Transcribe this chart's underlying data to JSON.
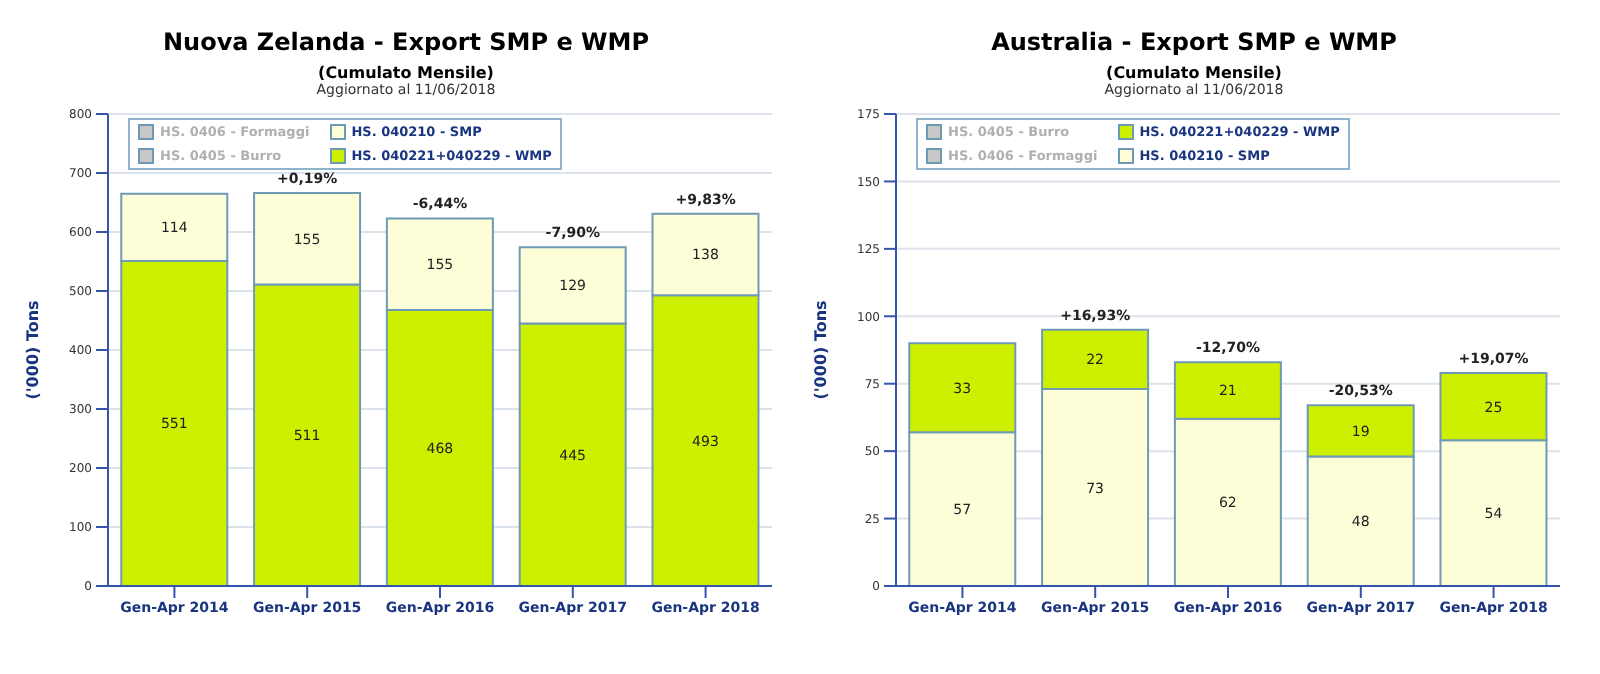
{
  "chart_data": [
    {
      "type": "bar",
      "title": "Nuova Zelanda - Export SMP e WMP",
      "subtitle": "(Cumulato Mensile)",
      "ylabel": "('000) Tons",
      "categories": [
        "Gen-Apr 2014",
        "Gen-Apr 2015",
        "Gen-Apr 2016",
        "Gen-Apr 2017",
        "Gen-Apr 2018"
      ],
      "stacked": true,
      "ylim": [
        0,
        800
      ],
      "yticks": [
        0,
        100,
        200,
        300,
        400,
        500,
        600,
        700,
        800
      ],
      "grid": "y",
      "legend": "top left",
      "data_labels": true,
      "series": [
        {
          "name": "HS. 040221+040229 - WMP",
          "color": "#ccf000",
          "values": [
            551,
            511,
            468,
            445,
            493
          ]
        },
        {
          "name": "HS. 0405 - Burro",
          "color": "#c8c8c8",
          "values": [
            null,
            null,
            null,
            null,
            null
          ]
        },
        {
          "name": "HS. 040210 - SMP",
          "color": "#fdfdd8",
          "values": [
            114,
            155,
            155,
            129,
            138
          ]
        },
        {
          "name": "HS. 0406 - Formaggi",
          "color": "#c8c8c8",
          "values": [
            null,
            null,
            null,
            null,
            null
          ]
        }
      ],
      "annotations": [
        "Aggiornato al 11/06/2018",
        {
          "text": "+0,19%",
          "x": "Gen-Apr 2015",
          "y": 666
        },
        {
          "text": "-6,44%",
          "x": "Gen-Apr 2016",
          "y": 623
        },
        {
          "text": "-7,90%",
          "x": "Gen-Apr 2017",
          "y": 574
        },
        {
          "text": "+9,83%",
          "x": "Gen-Apr 2018",
          "y": 631
        }
      ]
    },
    {
      "type": "bar",
      "title": "Australia - Export SMP e WMP",
      "subtitle": "(Cumulato Mensile)",
      "ylabel": "('000) Tons",
      "categories": [
        "Gen-Apr 2014",
        "Gen-Apr 2015",
        "Gen-Apr 2016",
        "Gen-Apr 2017",
        "Gen-Apr 2018"
      ],
      "stacked": true,
      "ylim": [
        0,
        175
      ],
      "yticks": [
        0,
        25,
        50,
        75,
        100,
        125,
        150,
        175
      ],
      "grid": "y",
      "legend": "top left",
      "data_labels": true,
      "series": [
        {
          "name": "HS. 040210 - SMP",
          "color": "#fdfdd8",
          "values": [
            57,
            73,
            62,
            48,
            54
          ]
        },
        {
          "name": "HS. 0406 - Formaggi",
          "color": "#c8c8c8",
          "values": [
            null,
            null,
            null,
            null,
            null
          ]
        },
        {
          "name": "HS. 040221+040229 - WMP",
          "color": "#ccf000",
          "values": [
            33,
            22,
            21,
            19,
            25
          ]
        },
        {
          "name": "HS. 0405 - Burro",
          "color": "#c8c8c8",
          "values": [
            null,
            null,
            null,
            null,
            null
          ]
        }
      ],
      "annotations": [
        "Aggiornato al 11/06/2018",
        {
          "text": "+16,93%",
          "x": "Gen-Apr 2015",
          "y": 95
        },
        {
          "text": "-12,70%",
          "x": "Gen-Apr 2016",
          "y": 83
        },
        {
          "text": "-20,53%",
          "x": "Gen-Apr 2017",
          "y": 67
        },
        {
          "text": "+19,07%",
          "x": "Gen-Apr 2018",
          "y": 79
        }
      ]
    }
  ]
}
